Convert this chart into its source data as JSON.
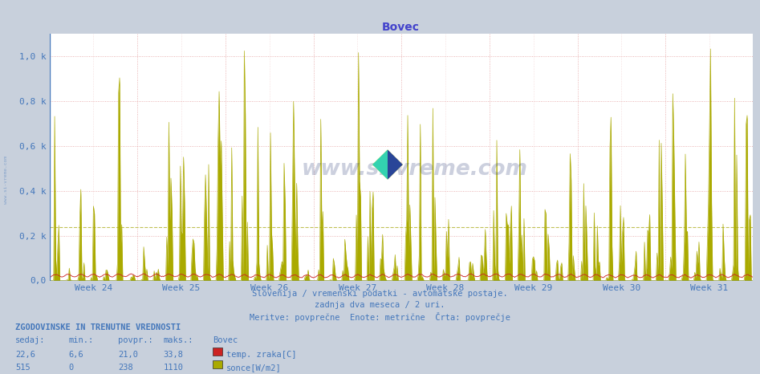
{
  "title": "Bovec",
  "title_color": "#4444cc",
  "title_fontsize": 10,
  "plot_bg_color": "#ffffff",
  "fig_bg_color": "#c8d0dc",
  "ylabel_color": "#4477bb",
  "xlabel_color": "#4477bb",
  "ylim": [
    0,
    1100
  ],
  "yticks": [
    0,
    200,
    400,
    600,
    800,
    1000
  ],
  "ytick_labels": [
    "0,0",
    "0,2 k",
    "0,4 k",
    "0,6 k",
    "0,8 k",
    "1,0 k"
  ],
  "weeks": [
    "Week 24",
    "Week 25",
    "Week 26",
    "Week 27",
    "Week 28",
    "Week 29",
    "Week 30",
    "Week 31"
  ],
  "temp_color": "#cc2222",
  "sun_color": "#aaaa00",
  "avg_line_color": "#bbbb44",
  "vgrid_color": "#dd8888",
  "hgrid_color": "#dd8888",
  "axis_color": "#4477bb",
  "watermark_text_color": "#1a2a6c",
  "n_points": 672,
  "temp_max": 33.8,
  "temp_min": 6.6,
  "temp_avg": 21.0,
  "temp_current": 22.6,
  "sun_max": 1110,
  "sun_min": 0,
  "sun_avg": 238,
  "sun_current": 515,
  "bottom_text_color": "#4477bb",
  "subtitle1": "Slovenija / vremenski podatki - avtomatske postaje.",
  "subtitle2": "zadnja dva meseca / 2 uri.",
  "subtitle3": "Meritve: povprečne  Enote: metrične  Črta: povprečje",
  "legend_temp_label": "temp. zraka[C]",
  "legend_sun_label": "sonce[W/m2]",
  "table_header": "ZGODOVINSKE IN TRENUTNE VREDNOSTI",
  "col_headers": [
    "sedaj:",
    "min.:",
    "povpr.:",
    "maks.:",
    "Bovec"
  ],
  "seed": 42,
  "points_per_day": 12
}
